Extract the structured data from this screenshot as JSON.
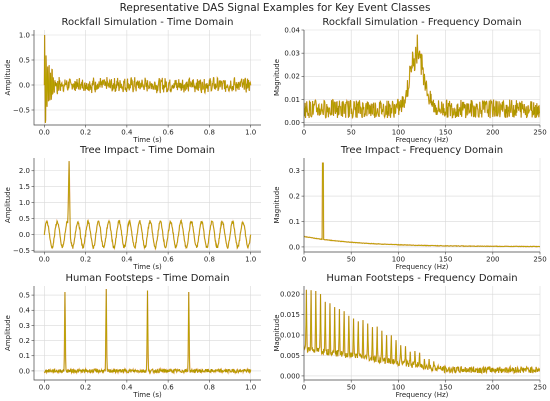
{
  "figure_title": "Representative DAS Signal Examples for Key Event Classes",
  "colors": {
    "trace_main": "#c9b400",
    "trace_edge": "#e0392b",
    "trace_dark": "#8a6a00"
  },
  "chart_data": [
    {
      "type": "line",
      "title": "Rockfall Simulation - Time Domain",
      "xlabel": "Time (s)",
      "ylabel": "Amplitude",
      "xlim": [
        -0.05,
        1.05
      ],
      "ylim": [
        -0.8,
        1.1
      ],
      "xticks": [
        0.0,
        0.2,
        0.4,
        0.6,
        0.8,
        1.0
      ],
      "xtick_labels": [
        "0.0",
        "0.2",
        "0.4",
        "0.6",
        "0.8",
        "1.0"
      ],
      "yticks": [
        -0.5,
        0.0,
        0.5,
        1.0
      ],
      "ytick_labels": [
        "−0.5",
        "0.0",
        "0.5",
        "1.0"
      ],
      "grid": true,
      "signal": {
        "kind": "decaying_burst",
        "x_range": [
          0,
          1
        ],
        "burst_peak": 1.0,
        "burst_min": -0.7,
        "noise_amplitude": 0.15
      }
    },
    {
      "type": "line",
      "title": "Rockfall Simulation - Frequency Domain",
      "xlabel": "Frequency (Hz)",
      "ylabel": "Magnitude",
      "xlim": [
        0,
        250
      ],
      "ylim": [
        -0.001,
        0.04
      ],
      "xticks": [
        0,
        50,
        100,
        150,
        200,
        250
      ],
      "xtick_labels": [
        "0",
        "50",
        "100",
        "150",
        "200",
        "250"
      ],
      "yticks": [
        0.0,
        0.01,
        0.02,
        0.03,
        0.04
      ],
      "ytick_labels": [
        "0.00",
        "0.01",
        "0.02",
        "0.03",
        "0.04"
      ],
      "grid": true,
      "signal": {
        "kind": "resonance_peak",
        "x_range": [
          0,
          250
        ],
        "peak_freq_hz": 120,
        "peak_value": 0.038,
        "baseline": 0.006
      }
    },
    {
      "type": "line",
      "title": "Tree Impact - Time Domain",
      "xlabel": "Time (s)",
      "ylabel": "Amplitude",
      "xlim": [
        -0.05,
        1.05
      ],
      "ylim": [
        -0.55,
        2.4
      ],
      "xticks": [
        0.0,
        0.2,
        0.4,
        0.6,
        0.8,
        1.0
      ],
      "xtick_labels": [
        "0.0",
        "0.2",
        "0.4",
        "0.6",
        "0.8",
        "1.0"
      ],
      "yticks": [
        -0.5,
        0.0,
        0.5,
        1.0,
        1.5,
        2.0
      ],
      "ytick_labels": [
        "−0.5",
        "0.0",
        "0.5",
        "1.0",
        "1.5",
        "2.0"
      ],
      "grid": true,
      "signal": {
        "kind": "sine_with_spike",
        "x_range": [
          0,
          1
        ],
        "sine_freq_hz": 20,
        "sine_amplitude": 0.4,
        "spike_time_s": 0.12,
        "spike_value": 2.3
      }
    },
    {
      "type": "line",
      "title": "Tree Impact - Frequency Domain",
      "xlabel": "Frequency (Hz)",
      "ylabel": "Magnitude",
      "xlim": [
        0,
        250
      ],
      "ylim": [
        -0.02,
        0.35
      ],
      "xticks": [
        0,
        50,
        100,
        150,
        200,
        250
      ],
      "xtick_labels": [
        "0",
        "50",
        "100",
        "150",
        "200",
        "250"
      ],
      "yticks": [
        0.0,
        0.1,
        0.2,
        0.3
      ],
      "ytick_labels": [
        "0.0",
        "0.1",
        "0.2",
        "0.3"
      ],
      "grid": true,
      "signal": {
        "kind": "single_tone",
        "x_range": [
          0,
          250
        ],
        "peak_freq_hz": 20,
        "peak_value": 0.33,
        "baseline_start": 0.04
      }
    },
    {
      "type": "line",
      "title": "Human Footsteps - Time Domain",
      "xlabel": "Time (s)",
      "ylabel": "Amplitude",
      "xlim": [
        -0.05,
        1.05
      ],
      "ylim": [
        -0.06,
        0.56
      ],
      "xticks": [
        0.0,
        0.2,
        0.4,
        0.6,
        0.8,
        1.0
      ],
      "xtick_labels": [
        "0.0",
        "0.2",
        "0.4",
        "0.6",
        "0.8",
        "1.0"
      ],
      "yticks": [
        0.0,
        0.1,
        0.2,
        0.3,
        0.4,
        0.5
      ],
      "ytick_labels": [
        "0.0",
        "0.1",
        "0.2",
        "0.3",
        "0.4",
        "0.5"
      ],
      "grid": true,
      "signal": {
        "kind": "periodic_impulses",
        "x_range": [
          0,
          1
        ],
        "impulse_times_s": [
          0.1,
          0.3,
          0.5,
          0.7
        ],
        "impulse_values": [
          0.52,
          0.54,
          0.53,
          0.52
        ]
      }
    },
    {
      "type": "line",
      "title": "Human Footsteps - Frequency Domain",
      "xlabel": "Frequency (Hz)",
      "ylabel": "Magnitude",
      "xlim": [
        0,
        250
      ],
      "ylim": [
        -0.001,
        0.022
      ],
      "xticks": [
        0,
        50,
        100,
        150,
        200,
        250
      ],
      "xtick_labels": [
        "0",
        "50",
        "100",
        "150",
        "200",
        "250"
      ],
      "yticks": [
        0.0,
        0.005,
        0.01,
        0.015,
        0.02
      ],
      "ytick_labels": [
        "0.000",
        "0.005",
        "0.010",
        "0.015",
        "0.020"
      ],
      "grid": true,
      "signal": {
        "kind": "harmonic_comb",
        "x_range": [
          0,
          250
        ],
        "spacing_hz": 5,
        "start_value": 0.021,
        "decay_end_hz": 150
      }
    }
  ]
}
